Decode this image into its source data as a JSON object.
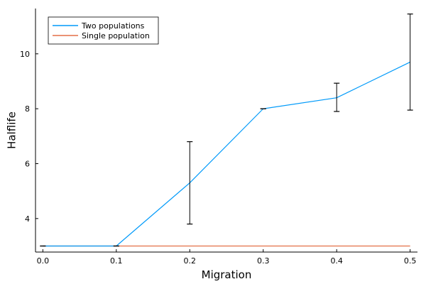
{
  "chart_data": {
    "type": "line",
    "xlabel": "Migration",
    "ylabel": "Halflife",
    "x": [
      0.0,
      0.1,
      0.2,
      0.3,
      0.4,
      0.5
    ],
    "xticks": [
      "0.0",
      "0.1",
      "0.2",
      "0.3",
      "0.4",
      "0.5"
    ],
    "yticks": [
      "4",
      "6",
      "8",
      "10"
    ],
    "xlim": [
      -0.01,
      0.51
    ],
    "ylim": [
      2.78,
      11.65
    ],
    "grid": false,
    "legend_position": "top-left",
    "series": [
      {
        "name": "Two populations",
        "color": "#009AFA",
        "values": [
          3.0,
          3.0,
          5.3,
          8.0,
          8.4,
          9.7
        ],
        "error_low": [
          3.0,
          3.0,
          3.8,
          8.0,
          7.9,
          7.95
        ],
        "error_high": [
          3.0,
          3.0,
          6.8,
          8.0,
          8.93,
          11.45
        ]
      },
      {
        "name": "Single population",
        "color": "#E36F47",
        "values": [
          3.0,
          3.0,
          3.0,
          3.0,
          3.0,
          3.0
        ]
      }
    ]
  }
}
